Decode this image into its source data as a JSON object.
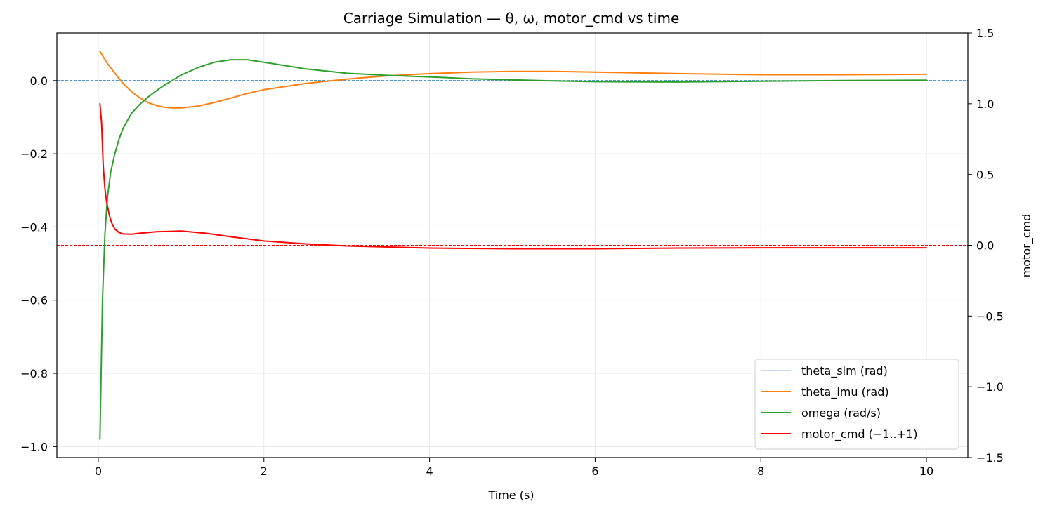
{
  "chart_data": {
    "type": "line",
    "title": "Carriage Simulation — θ, ω, motor_cmd vs time",
    "xlabel": "Time (s)",
    "ylabel": "",
    "y2label": "motor_cmd",
    "xlim": [
      -0.5,
      10.5
    ],
    "ylim": [
      -1.03,
      0.13
    ],
    "y2lim": [
      -1.5,
      1.5
    ],
    "xticks": [
      "0",
      "2",
      "4",
      "6",
      "8",
      "10"
    ],
    "yticks": [
      "0.0",
      "−0.2",
      "−0.4",
      "−0.6",
      "−0.8",
      "−1.0"
    ],
    "y2ticks": [
      "1.5",
      "1.0",
      "0.5",
      "0.0",
      "−0.5",
      "−1.0",
      "−1.5"
    ],
    "grid": true,
    "legend_position": "lower-right",
    "reference_lines": [
      {
        "axis": "left",
        "y": 0.0,
        "color": "#1f77b4",
        "style": "dashed"
      },
      {
        "axis": "right",
        "y": 0.0,
        "color": "#ff0000",
        "style": "dashed"
      }
    ],
    "series": [
      {
        "name": "theta_sim (rad)",
        "axis": "left",
        "color": "#aec7e8",
        "x": [],
        "y": []
      },
      {
        "name": "theta_imu (rad)",
        "axis": "left",
        "color": "#ff7f0e",
        "x": [
          0.02,
          0.1,
          0.2,
          0.3,
          0.4,
          0.5,
          0.6,
          0.7,
          0.8,
          0.9,
          1.0,
          1.2,
          1.4,
          1.6,
          1.8,
          2.0,
          2.5,
          3.0,
          3.5,
          4.0,
          4.5,
          5.0,
          5.5,
          6.0,
          7.0,
          8.0,
          9.0,
          10.0
        ],
        "y": [
          0.08,
          0.05,
          0.02,
          -0.008,
          -0.03,
          -0.047,
          -0.06,
          -0.068,
          -0.073,
          -0.075,
          -0.075,
          -0.07,
          -0.06,
          -0.048,
          -0.035,
          -0.025,
          -0.008,
          0.004,
          0.013,
          0.019,
          0.023,
          0.025,
          0.025,
          0.023,
          0.019,
          0.016,
          0.016,
          0.017
        ]
      },
      {
        "name": "omega (rad/s)",
        "axis": "left",
        "color": "#2ca02c",
        "x": [
          0.02,
          0.05,
          0.08,
          0.11,
          0.15,
          0.2,
          0.25,
          0.3,
          0.4,
          0.5,
          0.6,
          0.7,
          0.8,
          1.0,
          1.2,
          1.4,
          1.6,
          1.8,
          2.0,
          2.5,
          3.0,
          3.5,
          4.0,
          4.5,
          5.0,
          5.5,
          6.0,
          7.0,
          8.0,
          9.0,
          10.0
        ],
        "y": [
          -0.98,
          -0.6,
          -0.42,
          -0.32,
          -0.25,
          -0.2,
          -0.16,
          -0.13,
          -0.09,
          -0.065,
          -0.045,
          -0.028,
          -0.012,
          0.015,
          0.035,
          0.05,
          0.057,
          0.057,
          0.05,
          0.032,
          0.02,
          0.014,
          0.01,
          0.005,
          0.002,
          -0.001,
          -0.003,
          -0.004,
          -0.002,
          0.0,
          0.001
        ]
      },
      {
        "name": "motor_cmd (−1..+1)",
        "axis": "right",
        "color": "#ff0000",
        "x": [
          0.02,
          0.04,
          0.06,
          0.08,
          0.1,
          0.13,
          0.16,
          0.2,
          0.25,
          0.3,
          0.4,
          0.5,
          0.7,
          1.0,
          1.3,
          1.6,
          2.0,
          2.5,
          3.0,
          4.0,
          5.0,
          6.0,
          7.0,
          8.0,
          9.0,
          10.0
        ],
        "y": [
          1.0,
          0.86,
          0.56,
          0.4,
          0.31,
          0.22,
          0.16,
          0.115,
          0.09,
          0.08,
          0.078,
          0.085,
          0.095,
          0.1,
          0.085,
          0.06,
          0.03,
          0.01,
          -0.005,
          -0.02,
          -0.025,
          -0.025,
          -0.02,
          -0.018,
          -0.018,
          -0.018
        ]
      }
    ]
  }
}
